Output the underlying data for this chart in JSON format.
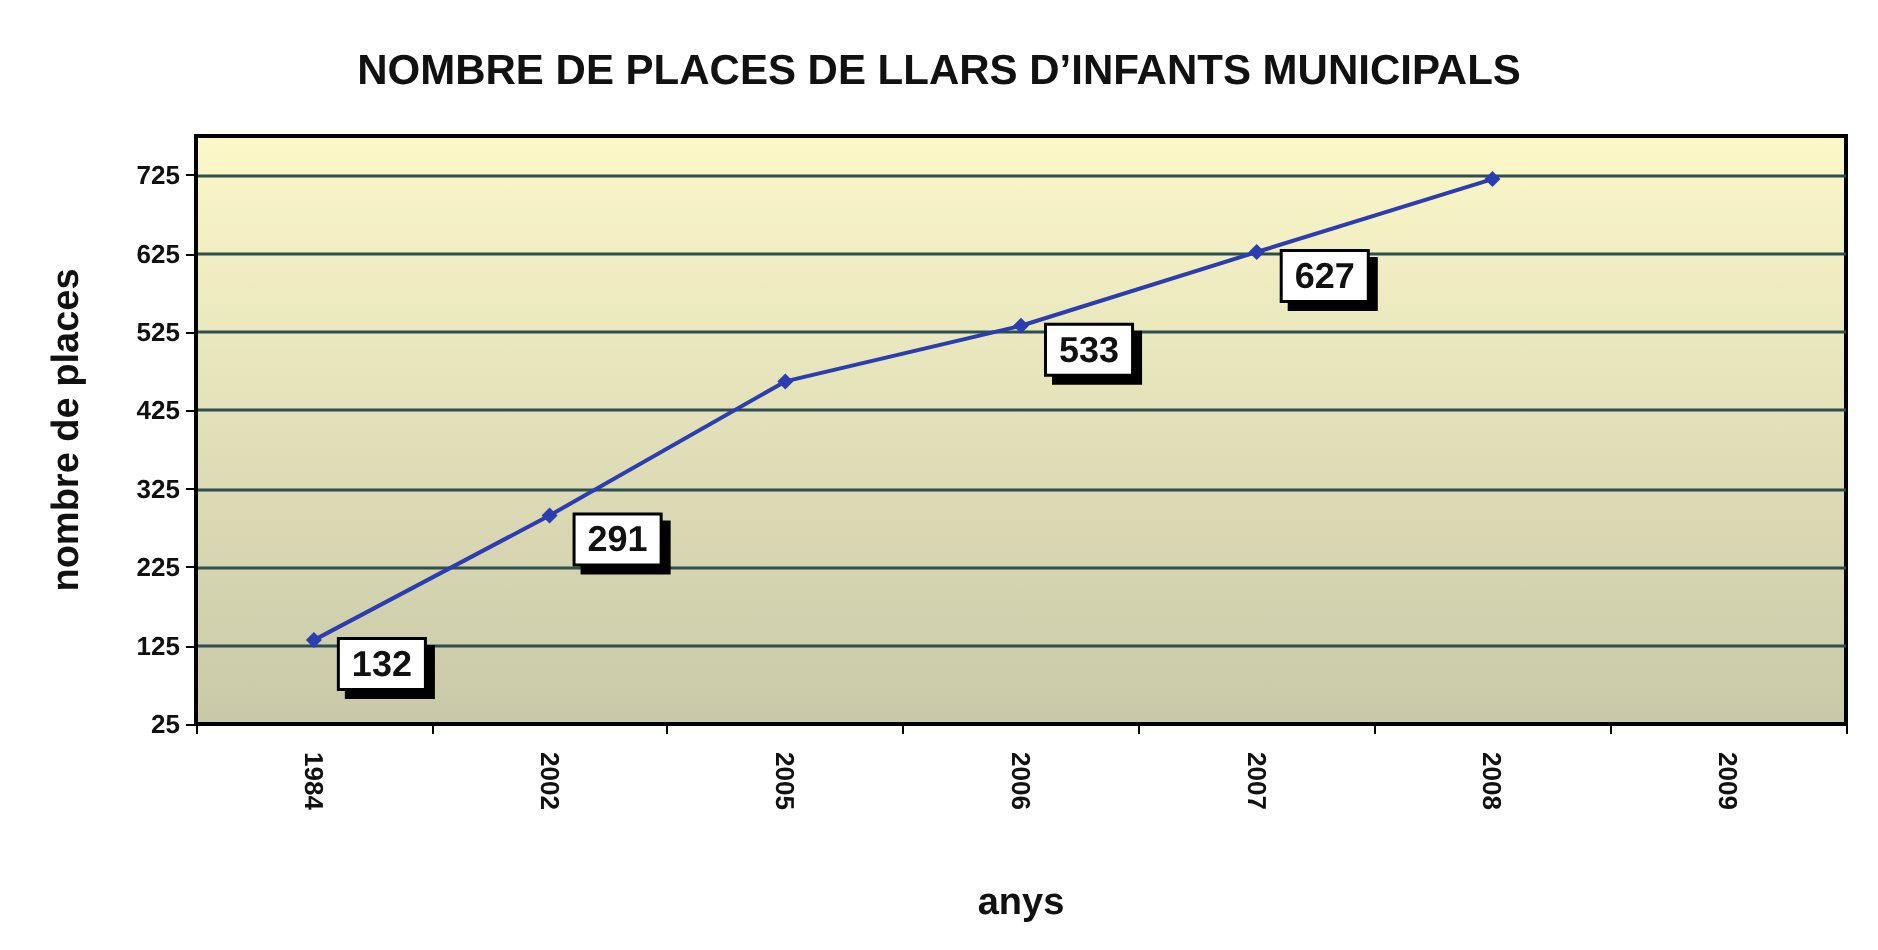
{
  "chart_data": {
    "type": "line",
    "title": "NOMBRE DE PLACES DE LLARS D’INFANTS MUNICIPALS",
    "xlabel": "anys",
    "ylabel": "nombre de places",
    "categories": [
      "1984",
      "2002",
      "2005",
      "2006",
      "2007",
      "2008",
      "2009"
    ],
    "series": [
      {
        "color": "#2b3db0",
        "values": [
          132,
          291,
          462,
          533,
          627,
          720,
          null
        ],
        "value_labels": [
          "132",
          "291",
          null,
          "533",
          "627",
          null,
          null
        ]
      }
    ],
    "ylim": [
      25,
      775
    ],
    "yticks": [
      25,
      125,
      225,
      325,
      425,
      525,
      625,
      725
    ],
    "grid": "y",
    "marker": "diamond",
    "line_style": "solid"
  }
}
